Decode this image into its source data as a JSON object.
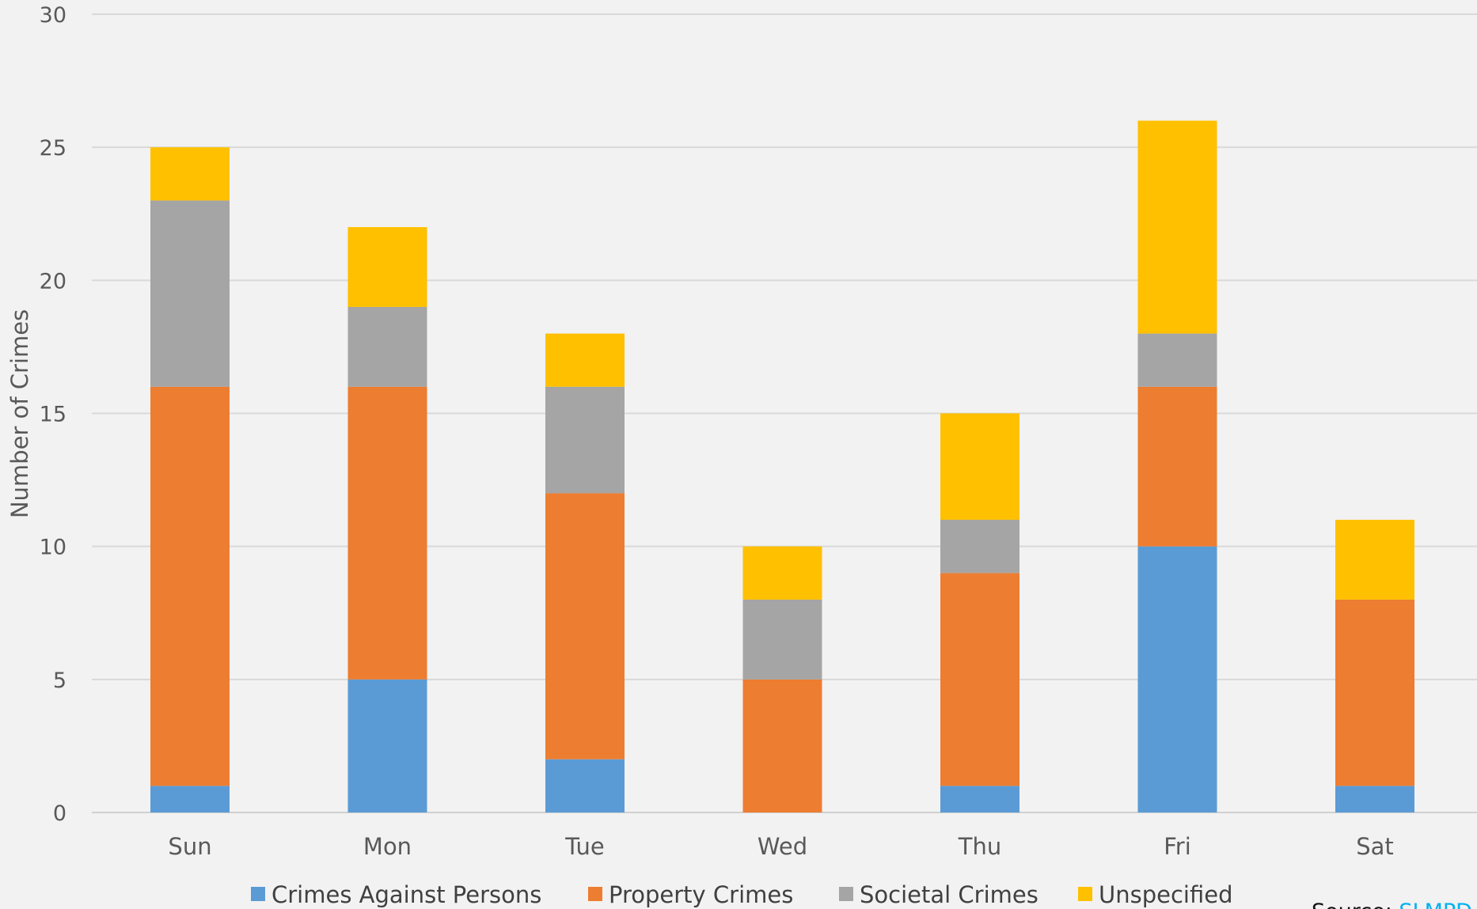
{
  "chart_data": {
    "type": "bar",
    "stacked": true,
    "categories": [
      "Sun",
      "Mon",
      "Tue",
      "Wed",
      "Thu",
      "Fri",
      "Sat"
    ],
    "series": [
      {
        "name": "Crimes Against Persons",
        "color": "#5b9bd5",
        "values": [
          1,
          5,
          2,
          0,
          1,
          10,
          1
        ]
      },
      {
        "name": "Property Crimes",
        "color": "#ed7d31",
        "values": [
          15,
          11,
          10,
          5,
          8,
          6,
          7
        ]
      },
      {
        "name": "Societal Crimes",
        "color": "#a5a5a5",
        "values": [
          7,
          3,
          4,
          3,
          2,
          2,
          0
        ]
      },
      {
        "name": "Unspecified",
        "color": "#ffc000",
        "values": [
          2,
          3,
          2,
          2,
          4,
          8,
          3
        ]
      }
    ],
    "ylabel": "Number of Crimes",
    "ylim": [
      0,
      30
    ],
    "yticks": [
      0,
      5,
      10,
      15,
      20,
      25,
      30
    ],
    "grid": true,
    "legend_position": "bottom"
  },
  "source": {
    "prefix": "Source: ",
    "link_text": "SLMPD"
  }
}
